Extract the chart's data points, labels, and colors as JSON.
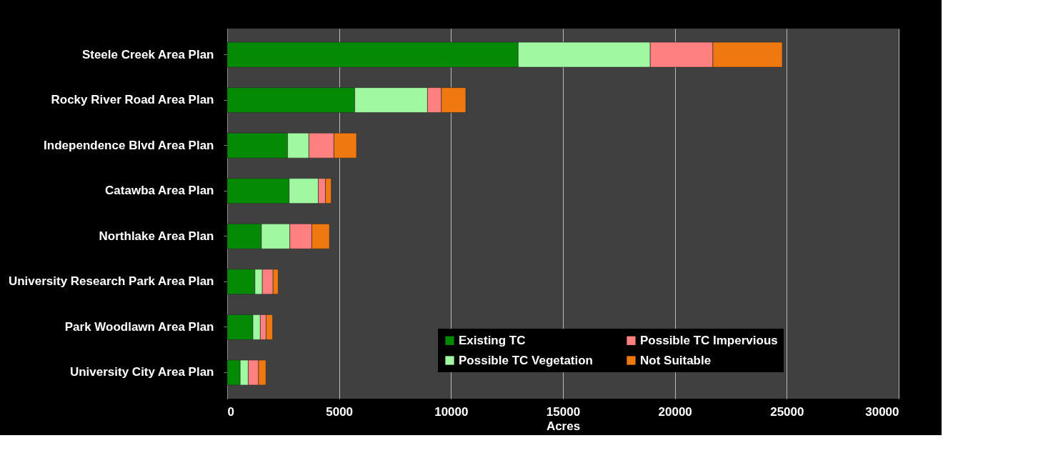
{
  "chart_data": {
    "type": "bar",
    "orientation": "horizontal",
    "stacked": true,
    "xlabel": "Acres",
    "categories": [
      "Steele Creek Area Plan",
      "Rocky River Road Area Plan",
      "Independence Blvd Area Plan",
      "Catawba Area Plan",
      "Northlake Area Plan",
      "University Research Park Area Plan",
      "Park Woodlawn Area Plan",
      "University City Area Plan"
    ],
    "series": [
      {
        "name": "Existing TC",
        "color": "#058a05",
        "values": [
          13000,
          5700,
          2700,
          2770,
          1530,
          1240,
          1150,
          580
        ]
      },
      {
        "name": "Possible TC Vegetation",
        "color": "#a0f9a0",
        "values": [
          5900,
          3250,
          950,
          1300,
          1270,
          330,
          330,
          360
        ]
      },
      {
        "name": "Possible TC Impervious",
        "color": "#ff8080",
        "values": [
          2800,
          620,
          1120,
          320,
          980,
          480,
          260,
          460
        ]
      },
      {
        "name": "Not Suitable",
        "color": "#f07810",
        "values": [
          3100,
          1090,
          1010,
          260,
          790,
          230,
          290,
          330
        ]
      }
    ],
    "xlim": [
      0,
      30000
    ],
    "xticks": [
      0,
      5000,
      10000,
      15000,
      20000,
      25000,
      30000
    ],
    "grid": "x",
    "legend": "bottom right"
  }
}
